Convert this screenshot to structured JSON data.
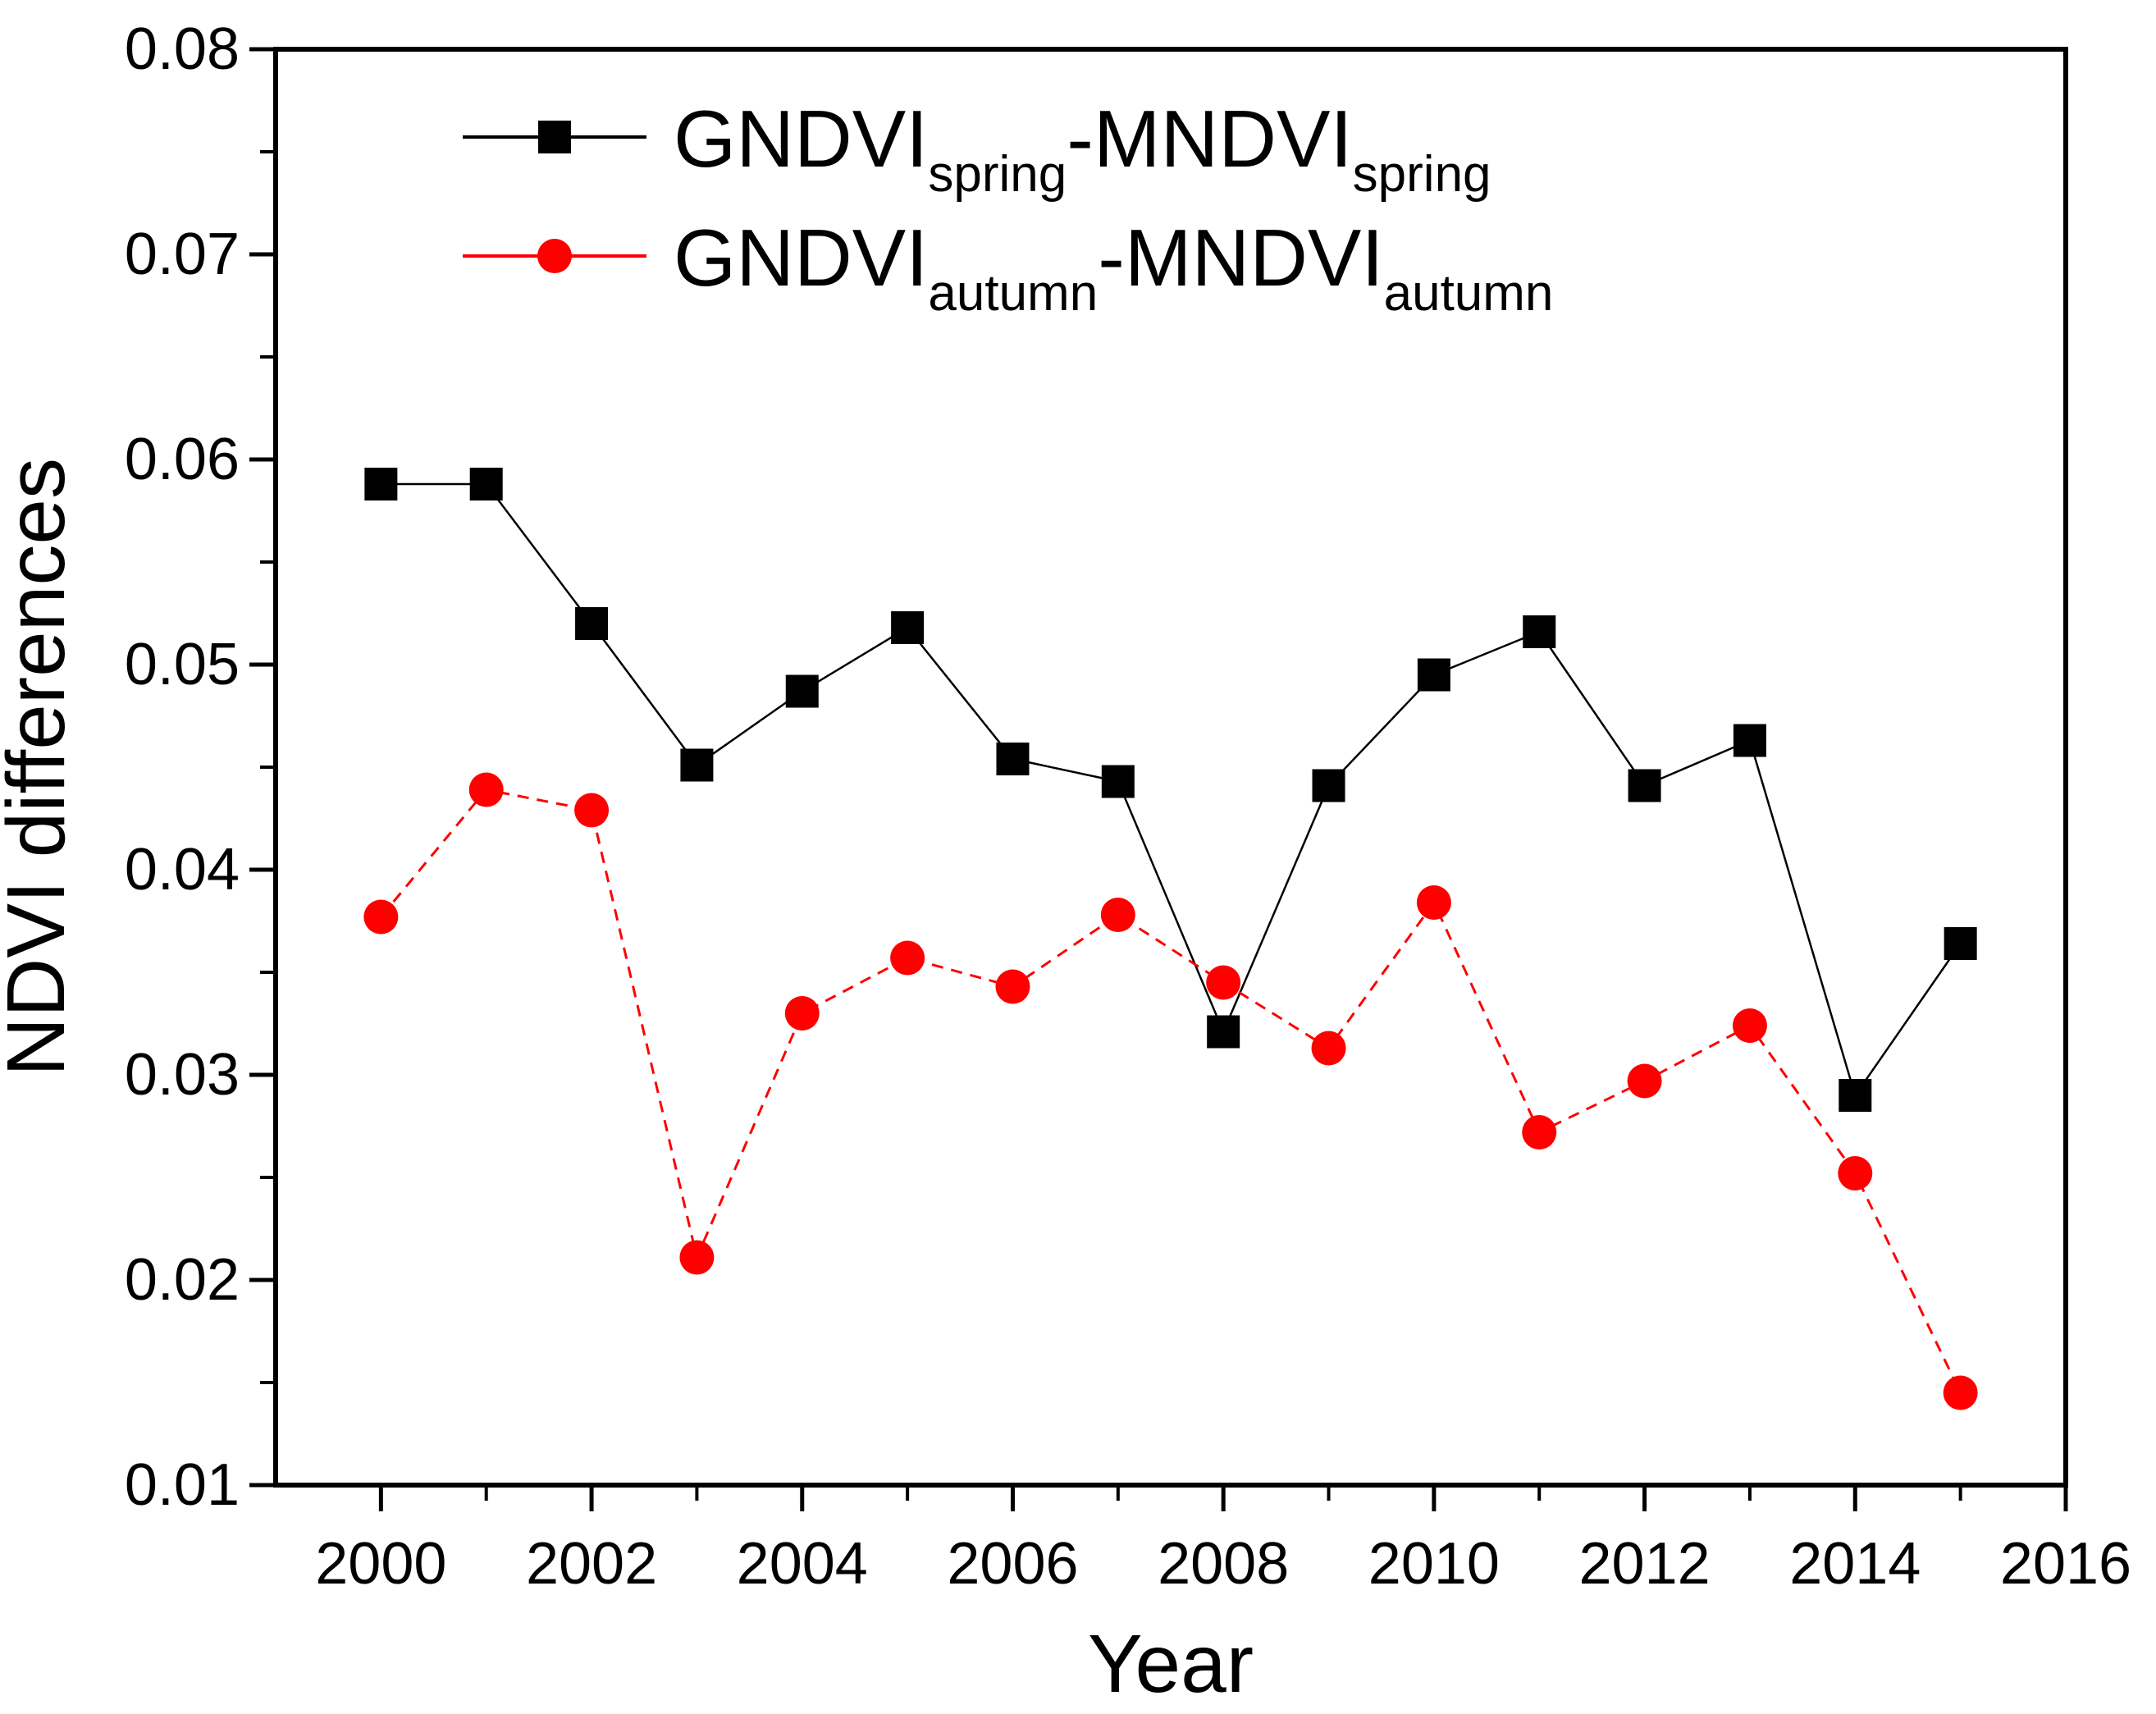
{
  "figure": {
    "background": "#ffffff",
    "frame_color": "#000000",
    "text_color": "#000000"
  },
  "chart_data": {
    "type": "line",
    "title": "",
    "xlabel": "Year",
    "ylabel": "NDVI differences",
    "xlim": [
      1999,
      2016
    ],
    "ylim": [
      0.01,
      0.08
    ],
    "grid": false,
    "legend_position": "inside-top-left",
    "x_major_ticks": [
      2000,
      2002,
      2004,
      2006,
      2008,
      2010,
      2012,
      2014,
      2016
    ],
    "x_minor_ticks": [
      2001,
      2003,
      2005,
      2007,
      2009,
      2011,
      2013,
      2015
    ],
    "y_major_ticks": [
      0.01,
      0.02,
      0.03,
      0.04,
      0.05,
      0.06,
      0.07,
      0.08
    ],
    "y_minor_ticks": [
      0.015,
      0.025,
      0.035,
      0.045,
      0.055,
      0.065,
      0.075
    ],
    "y_tick_decimals": 2,
    "x": [
      2000,
      2001,
      2002,
      2003,
      2004,
      2005,
      2006,
      2007,
      2008,
      2009,
      2010,
      2011,
      2012,
      2013,
      2014,
      2015
    ],
    "series": [
      {
        "name": "GNDVI_spring-MNDVI_spring",
        "label_parts": {
          "base1": "GNDVI",
          "sub1": "spring",
          "base2": "-MNDVI",
          "sub2": "spring"
        },
        "color": "#000000",
        "marker": "square",
        "line_style": "solid",
        "values": [
          0.0588,
          0.0588,
          0.052,
          0.0451,
          0.0487,
          0.0518,
          0.0454,
          0.0443,
          0.0321,
          0.0441,
          0.0495,
          0.0516,
          0.0441,
          0.0463,
          0.029,
          0.0364
        ]
      },
      {
        "name": "GNDVI_autumn-MNDVI_autumn",
        "label_parts": {
          "base1": "GNDVI",
          "sub1": "autumn",
          "base2": "-MNDVI",
          "sub2": "autumn"
        },
        "color": "#ff0000",
        "marker": "circle",
        "line_style": "dashed",
        "values": [
          0.0377,
          0.0439,
          0.0429,
          0.0211,
          0.033,
          0.0357,
          0.0343,
          0.0378,
          0.0345,
          0.0313,
          0.0384,
          0.0272,
          0.0297,
          0.0324,
          0.0252,
          0.0145
        ]
      }
    ]
  }
}
